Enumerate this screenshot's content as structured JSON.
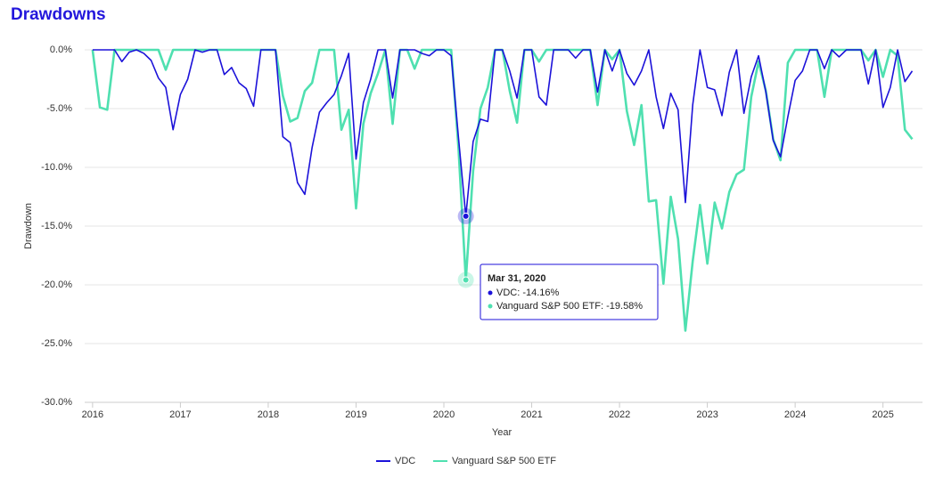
{
  "chart_data": {
    "type": "line",
    "title": "Drawdowns",
    "xlabel": "Year",
    "ylabel": "Drawdown",
    "x": [
      "2015-12",
      "2016-01",
      "2016-02",
      "2016-03",
      "2016-04",
      "2016-05",
      "2016-06",
      "2016-07",
      "2016-08",
      "2016-09",
      "2016-10",
      "2016-11",
      "2016-12",
      "2017-01",
      "2017-02",
      "2017-03",
      "2017-04",
      "2017-05",
      "2017-06",
      "2017-07",
      "2017-08",
      "2017-09",
      "2017-10",
      "2017-11",
      "2017-12",
      "2018-01",
      "2018-02",
      "2018-03",
      "2018-04",
      "2018-05",
      "2018-06",
      "2018-07",
      "2018-08",
      "2018-09",
      "2018-10",
      "2018-11",
      "2018-12",
      "2019-01",
      "2019-02",
      "2019-03",
      "2019-04",
      "2019-05",
      "2019-06",
      "2019-07",
      "2019-08",
      "2019-09",
      "2019-10",
      "2019-11",
      "2019-12",
      "2020-01",
      "2020-02",
      "2020-03",
      "2020-04",
      "2020-05",
      "2020-06",
      "2020-07",
      "2020-08",
      "2020-09",
      "2020-10",
      "2020-11",
      "2020-12",
      "2021-01",
      "2021-02",
      "2021-03",
      "2021-04",
      "2021-05",
      "2021-06",
      "2021-07",
      "2021-08",
      "2021-09",
      "2021-10",
      "2021-11",
      "2021-12",
      "2022-01",
      "2022-02",
      "2022-03",
      "2022-04",
      "2022-05",
      "2022-06",
      "2022-07",
      "2022-08",
      "2022-09",
      "2022-10",
      "2022-11",
      "2022-12",
      "2023-01",
      "2023-02",
      "2023-03",
      "2023-04",
      "2023-05",
      "2023-06",
      "2023-07",
      "2023-08",
      "2023-09",
      "2023-10",
      "2023-11",
      "2023-12",
      "2024-01",
      "2024-02",
      "2024-03",
      "2024-04",
      "2024-05",
      "2024-06",
      "2024-07",
      "2024-08",
      "2024-09",
      "2024-10",
      "2024-11",
      "2024-12",
      "2025-01",
      "2025-02",
      "2025-03",
      "2025-04"
    ],
    "series": [
      {
        "name": "VDC",
        "color": "#1c12d9",
        "values": [
          0,
          0,
          0,
          0,
          -1.0,
          -0.2,
          0,
          -0.3,
          -0.9,
          -2.4,
          -3.2,
          -6.8,
          -3.8,
          -2.5,
          0,
          -0.2,
          0,
          0,
          -2.1,
          -1.5,
          -2.8,
          -3.3,
          -4.8,
          0,
          0,
          0,
          -7.4,
          -7.9,
          -11.3,
          -12.3,
          -8.3,
          -5.3,
          -4.5,
          -3.8,
          -2.2,
          -0.3,
          -9.3,
          -4.5,
          -2.5,
          0,
          0,
          -4.1,
          0,
          0,
          0,
          -0.3,
          -0.5,
          0,
          0,
          -0.5,
          -7.5,
          -14.16,
          -7.8,
          -5.9,
          -6.1,
          0,
          0,
          -1.8,
          -4.1,
          0,
          0,
          -4.0,
          -4.7,
          0,
          0,
          0,
          -0.7,
          0,
          0,
          -3.6,
          0,
          -1.8,
          0,
          -2.0,
          -3.0,
          -1.8,
          0,
          -4.0,
          -6.7,
          -3.7,
          -5.1,
          -13.0,
          -4.7,
          0,
          -3.2,
          -3.4,
          -5.6,
          -1.9,
          0,
          -5.4,
          -2.3,
          -0.5,
          -3.6,
          -7.7,
          -9.1,
          -5.7,
          -2.6,
          -1.8,
          0,
          0,
          -1.6,
          0,
          -0.6,
          0,
          0,
          0,
          -2.9,
          0,
          -4.9,
          -3.2,
          0,
          -2.7,
          -1.8
        ]
      },
      {
        "name": "Vanguard S&P 500 ETF",
        "color": "#4fe0b0",
        "values": [
          0,
          -4.9,
          -5.1,
          0,
          0,
          0,
          0,
          0,
          0,
          0,
          -1.7,
          0,
          0,
          0,
          0,
          0,
          0,
          0,
          0,
          0,
          0,
          0,
          0,
          0,
          0,
          0,
          -3.9,
          -6.1,
          -5.8,
          -3.5,
          -2.8,
          0,
          0,
          0,
          -6.8,
          -5.1,
          -13.5,
          -6.3,
          -3.7,
          -2.0,
          0,
          -6.3,
          0,
          0,
          -1.6,
          0,
          0,
          0,
          0,
          0,
          -8.4,
          -19.58,
          -10.3,
          -5.0,
          -3.2,
          0,
          0,
          -3.5,
          -6.2,
          0,
          0,
          -1.0,
          0,
          0,
          0,
          0,
          0,
          0,
          0,
          -4.7,
          0,
          -0.8,
          0,
          -5.2,
          -8.1,
          -4.7,
          -12.9,
          -12.8,
          -19.9,
          -12.5,
          -16.1,
          -23.9,
          -18.0,
          -13.2,
          -18.2,
          -13.0,
          -15.2,
          -12.1,
          -10.6,
          -10.2,
          -4.0,
          -1.0,
          -3.5,
          -7.6,
          -9.4,
          -1.1,
          0,
          0,
          0,
          0,
          -4.0,
          0,
          0,
          0,
          0,
          0,
          -0.9,
          0,
          -2.3,
          0,
          -0.5,
          -6.8,
          -7.6
        ]
      }
    ],
    "xlim": [
      2015.91,
      2025.45
    ],
    "xticks": [
      2016,
      2017,
      2018,
      2019,
      2020,
      2021,
      2022,
      2023,
      2024,
      2025
    ],
    "ylim": [
      -30,
      0
    ],
    "yticks": [
      {
        "value": 0,
        "label": "0.0%"
      },
      {
        "value": -5,
        "label": "-5.0%"
      },
      {
        "value": -10,
        "label": "-10.0%"
      },
      {
        "value": -15,
        "label": "-15.0%"
      },
      {
        "value": -20,
        "label": "-20.0%"
      },
      {
        "value": -25,
        "label": "-25.0%"
      },
      {
        "value": -30,
        "label": "-30.0%"
      }
    ],
    "grid": true,
    "legend": "bottom",
    "tooltip": {
      "title": "Mar 31, 2020",
      "items": [
        "VDC: -14.16%",
        "Vanguard S&P 500 ETF: -19.58%"
      ]
    }
  }
}
